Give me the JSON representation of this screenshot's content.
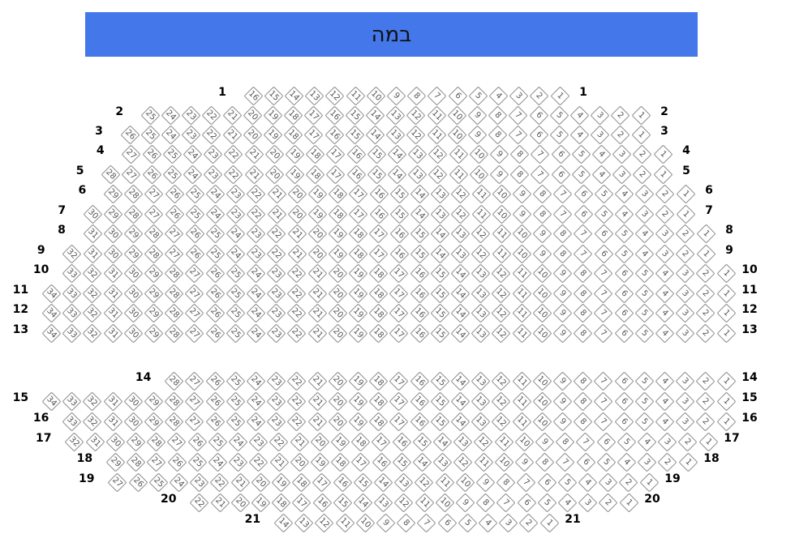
{
  "stage": {
    "label": "במה",
    "color": "#4477ea"
  },
  "rows": [
    {
      "label": "1",
      "seats": [
        "1",
        "2",
        "3",
        "4",
        "5",
        "6",
        "7",
        "8",
        "9",
        "10",
        "11",
        "12",
        "13",
        "14",
        "15",
        "16"
      ]
    },
    {
      "label": "2",
      "seats": [
        "1",
        "2",
        "3",
        "4",
        "5",
        "6",
        "7",
        "8",
        "9",
        "10",
        "11",
        "12",
        "13",
        "14",
        "15",
        "16",
        "17",
        "18",
        "19",
        "20",
        "21",
        "22",
        "23",
        "24",
        "25"
      ]
    },
    {
      "label": "3",
      "seats": [
        "1",
        "2",
        "3",
        "4",
        "5",
        "6",
        "7",
        "8",
        "9",
        "10",
        "11",
        "12",
        "13",
        "14",
        "15",
        "16",
        "17",
        "18",
        "19",
        "20",
        "21",
        "22",
        "23",
        "24",
        "25",
        "26"
      ]
    },
    {
      "label": "4",
      "seats": [
        "1",
        "2",
        "3",
        "4",
        "5",
        "6",
        "7",
        "8",
        "9",
        "10",
        "11",
        "12",
        "13",
        "14",
        "15",
        "16",
        "17",
        "18",
        "19",
        "20",
        "21",
        "22",
        "23",
        "24",
        "25",
        "26",
        "27"
      ]
    },
    {
      "label": "5",
      "seats": [
        "1",
        "2",
        "3",
        "4",
        "5",
        "6",
        "7",
        "8",
        "9",
        "10",
        "11",
        "12",
        "13",
        "14",
        "15",
        "16",
        "17",
        "18",
        "19",
        "20",
        "21",
        "22",
        "23",
        "24",
        "25",
        "26",
        "27",
        "28"
      ]
    },
    {
      "label": "6",
      "seats": [
        "1",
        "2",
        "3",
        "4",
        "5",
        "6",
        "7",
        "8",
        "9",
        "10",
        "11",
        "12",
        "13",
        "14",
        "15",
        "16",
        "17",
        "18",
        "19",
        "20",
        "21",
        "22",
        "23",
        "24",
        "25",
        "26",
        "27",
        "28",
        "29"
      ]
    },
    {
      "label": "7",
      "seats": [
        "1",
        "2",
        "3",
        "4",
        "5",
        "6",
        "7",
        "8",
        "9",
        "10",
        "11",
        "12",
        "13",
        "14",
        "15",
        "16",
        "17",
        "18",
        "19",
        "20",
        "21",
        "22",
        "23",
        "24",
        "25",
        "26",
        "27",
        "28",
        "29",
        "30"
      ]
    },
    {
      "label": "8",
      "seats": [
        "1",
        "2",
        "3",
        "4",
        "5",
        "6",
        "7",
        "8",
        "9",
        "10",
        "11",
        "12",
        "13",
        "14",
        "15",
        "16",
        "17",
        "18",
        "19",
        "20",
        "21",
        "22",
        "23",
        "24",
        "25",
        "26",
        "27",
        "28",
        "29",
        "30",
        "31"
      ]
    },
    {
      "label": "9",
      "seats": [
        "1",
        "2",
        "3",
        "4",
        "5",
        "6",
        "7",
        "8",
        "9",
        "10",
        "11",
        "12",
        "13",
        "14",
        "15",
        "16",
        "17",
        "18",
        "19",
        "20",
        "21",
        "22",
        "23",
        "24",
        "25",
        "26",
        "27",
        "28",
        "29",
        "30",
        "31",
        "32"
      ]
    },
    {
      "label": "10",
      "seats": [
        "1",
        "2",
        "3",
        "4",
        "5",
        "6",
        "7",
        "8",
        "9",
        "10",
        "11",
        "12",
        "13",
        "14",
        "15",
        "16",
        "17",
        "18",
        "19",
        "20",
        "21",
        "22",
        "23",
        "24",
        "25",
        "26",
        "27",
        "28",
        "29",
        "30",
        "31",
        "32",
        "33"
      ]
    },
    {
      "label": "11",
      "seats": [
        "1",
        "2",
        "3",
        "4",
        "5",
        "6",
        "7",
        "8",
        "9",
        "10",
        "11",
        "12",
        "13",
        "14",
        "15",
        "16",
        "17",
        "18",
        "19",
        "20",
        "21",
        "22",
        "23",
        "24",
        "25",
        "26",
        "27",
        "28",
        "29",
        "30",
        "31",
        "32",
        "33",
        "34"
      ]
    },
    {
      "label": "12",
      "seats": [
        "1",
        "2",
        "3",
        "4",
        "5",
        "6",
        "7",
        "8",
        "9",
        "10",
        "11",
        "12",
        "13",
        "14",
        "15",
        "16",
        "17",
        "18",
        "19",
        "20",
        "21",
        "22",
        "23",
        "24",
        "25",
        "26",
        "27",
        "28",
        "29",
        "30",
        "31",
        "32",
        "33",
        "34"
      ]
    },
    {
      "label": "13",
      "seats": [
        "1",
        "2",
        "3",
        "4",
        "5",
        "6",
        "7",
        "8",
        "9",
        "10",
        "11",
        "12",
        "13",
        "14",
        "15",
        "16",
        "17",
        "18",
        "19",
        "20",
        "21",
        "22",
        "23",
        "24",
        "25",
        "26",
        "27",
        "28",
        "29",
        "30",
        "31",
        "32",
        "33",
        "34"
      ]
    },
    {
      "label": "14",
      "seats": [
        "1",
        "2",
        "3",
        "4",
        "5",
        "6",
        "7",
        "8",
        "9",
        "10",
        "11",
        "12",
        "13",
        "14",
        "15",
        "16",
        "17",
        "18",
        "19",
        "20",
        "21",
        "22",
        "23",
        "24",
        "25",
        "26",
        "27",
        "28"
      ]
    },
    {
      "label": "15",
      "seats": [
        "1",
        "2",
        "3",
        "4",
        "5",
        "6",
        "7",
        "8",
        "9",
        "10",
        "11",
        "12",
        "13",
        "14",
        "15",
        "16",
        "17",
        "18",
        "19",
        "20",
        "21",
        "22",
        "23",
        "24",
        "25",
        "26",
        "27",
        "28",
        "29",
        "30",
        "31",
        "32",
        "33",
        "34"
      ]
    },
    {
      "label": "16",
      "seats": [
        "1",
        "2",
        "3",
        "4",
        "5",
        "6",
        "7",
        "8",
        "9",
        "10",
        "11",
        "12",
        "13",
        "14",
        "15",
        "16",
        "17",
        "18",
        "19",
        "20",
        "21",
        "22",
        "23",
        "24",
        "25",
        "26",
        "27",
        "28",
        "29",
        "30",
        "31",
        "32",
        "33"
      ]
    },
    {
      "label": "17",
      "seats": [
        "1",
        "2",
        "3",
        "4",
        "5",
        "6",
        "7",
        "8",
        "9",
        "10",
        "11",
        "12",
        "13",
        "14",
        "15",
        "16",
        "17",
        "18",
        "19",
        "20",
        "21",
        "22",
        "23",
        "24",
        "25",
        "26",
        "27",
        "28",
        "29",
        "30",
        "31",
        "32"
      ]
    },
    {
      "label": "18",
      "seats": [
        "1",
        "2",
        "3",
        "4",
        "5",
        "6",
        "7",
        "8",
        "9",
        "10",
        "11",
        "12",
        "13",
        "14",
        "15",
        "16",
        "17",
        "18",
        "19",
        "20",
        "21",
        "22",
        "23",
        "24",
        "25",
        "26",
        "27",
        "28",
        "29"
      ]
    },
    {
      "label": "19",
      "seats": [
        "1",
        "2",
        "3",
        "4",
        "5",
        "6",
        "7",
        "8",
        "9",
        "10",
        "11",
        "12",
        "13",
        "14",
        "15",
        "16",
        "17",
        "18",
        "19",
        "20",
        "21",
        "22",
        "23",
        "24",
        "25",
        "26",
        "27"
      ]
    },
    {
      "label": "20",
      "seats": [
        "1",
        "2",
        "3",
        "4",
        "5",
        "6",
        "7",
        "8",
        "9",
        "10",
        "11",
        "12",
        "13",
        "14",
        "15",
        "16",
        "17",
        "18",
        "19",
        "20",
        "21",
        "22"
      ]
    },
    {
      "label": "21",
      "seats": [
        "1",
        "2",
        "3",
        "4",
        "5",
        "6",
        "7",
        "8",
        "9",
        "10",
        "11",
        "12",
        "13",
        "14"
      ]
    }
  ]
}
